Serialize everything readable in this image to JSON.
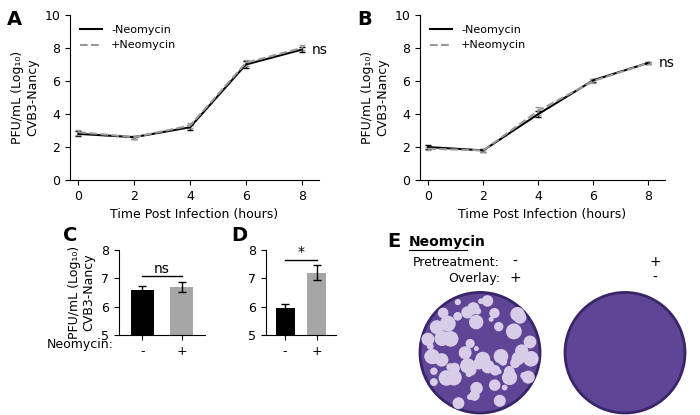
{
  "chart_data": [
    {
      "type": "line",
      "title": "A",
      "x": [
        0,
        2,
        4,
        6,
        8
      ],
      "xlim": [
        -0.3,
        8.6
      ],
      "xticks": [
        0,
        2,
        4,
        6,
        8
      ],
      "ylim": [
        0,
        10
      ],
      "yticks": [
        0,
        2,
        4,
        6,
        8,
        10
      ],
      "xlabel": "Time Post Infection (hours)",
      "ylabel": "PFU/mL (Log₁₀)\nCVB3-Nancy",
      "legend": "upper left",
      "annotations": [
        "ns"
      ],
      "series": [
        {
          "name": "-Neomycin",
          "color": "#000000",
          "line_style": "solid",
          "values": [
            2.8,
            2.6,
            3.2,
            7.0,
            7.9
          ],
          "errors": [
            0.15,
            0.1,
            0.15,
            0.2,
            0.15
          ]
        },
        {
          "name": "+Neomycin",
          "color": "#999999",
          "line_style": "dashed",
          "values": [
            2.9,
            2.6,
            3.3,
            7.1,
            8.0
          ],
          "errors": [
            0.15,
            0.1,
            0.15,
            0.2,
            0.15
          ]
        }
      ]
    },
    {
      "type": "line",
      "title": "B",
      "x": [
        0,
        2,
        4,
        6,
        8
      ],
      "xlim": [
        -0.3,
        8.6
      ],
      "xticks": [
        0,
        2,
        4,
        6,
        8
      ],
      "ylim": [
        0,
        10
      ],
      "yticks": [
        0,
        2,
        4,
        6,
        8,
        10
      ],
      "xlabel": "Time Post Infection (hours)",
      "ylabel": "PFU/mL (Log₁₀)\nCVB3-Nancy",
      "legend": "upper left",
      "annotations": [
        "ns"
      ],
      "series": [
        {
          "name": "-Neomycin",
          "color": "#000000",
          "line_style": "solid",
          "values": [
            2.0,
            1.8,
            4.0,
            6.05,
            7.1
          ],
          "errors": [
            0.1,
            0.1,
            0.2,
            0.1,
            0.05
          ]
        },
        {
          "name": "+Neomycin",
          "color": "#999999",
          "line_style": "dashed",
          "values": [
            1.9,
            1.8,
            4.2,
            6.0,
            7.1
          ],
          "errors": [
            0.1,
            0.1,
            0.25,
            0.1,
            0.05
          ]
        }
      ]
    },
    {
      "type": "bar",
      "title": "C",
      "categories": [
        "-",
        "+"
      ],
      "values": [
        6.6,
        6.7
      ],
      "errors": [
        0.12,
        0.18
      ],
      "colors": [
        "#000000",
        "#a6a6a6"
      ],
      "ylim": [
        5,
        8
      ],
      "yticks": [
        5,
        6,
        7,
        8
      ],
      "xlabel": "Neomycin:",
      "ylabel": "PFU/mL (Log₁₀)\nCVB3-Nancy",
      "annotations": [
        "ns"
      ]
    },
    {
      "type": "bar",
      "title": "D",
      "categories": [
        "-",
        "+"
      ],
      "values": [
        5.95,
        7.2
      ],
      "errors": [
        0.15,
        0.25
      ],
      "colors": [
        "#000000",
        "#a6a6a6"
      ],
      "ylim": [
        5,
        8
      ],
      "yticks": [
        5,
        6,
        7,
        8
      ],
      "annotations": [
        "*"
      ]
    }
  ],
  "plaque_assay": {
    "title": "E",
    "heading": "Neomycin",
    "rows": [
      {
        "label": "Pretreatment:",
        "values": [
          "-",
          "+"
        ]
      },
      {
        "label": "Overlay:",
        "values": [
          "+",
          "-"
        ]
      }
    ]
  }
}
